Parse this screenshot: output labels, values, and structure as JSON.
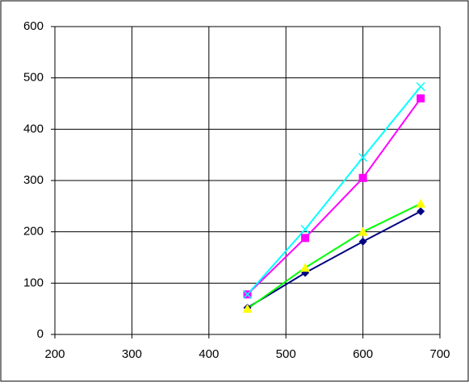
{
  "chart_data": {
    "type": "scatter",
    "x": [
      450,
      525,
      600,
      675
    ],
    "series": [
      {
        "color": "#000080",
        "marker": "diamond",
        "marker_color": "#000080",
        "values": [
          52,
          120,
          181,
          240
        ]
      },
      {
        "color": "#00ff00",
        "marker": "triangle",
        "marker_color": "#ffff00",
        "values": [
          50,
          130,
          200,
          255
        ]
      },
      {
        "color": "#ff00ff",
        "marker": "square",
        "marker_color": "#ff00ff",
        "values": [
          78,
          188,
          305,
          460
        ]
      },
      {
        "color": "#00ffff",
        "marker": "x",
        "marker_color": "#00ffff",
        "values": [
          78,
          205,
          345,
          483
        ]
      }
    ],
    "xlim": [
      200,
      700
    ],
    "xticks": [
      200,
      300,
      400,
      500,
      600,
      700
    ],
    "ylim": [
      0,
      600
    ],
    "yticks": [
      0,
      100,
      200,
      300,
      400,
      500,
      600
    ],
    "grid": true
  }
}
